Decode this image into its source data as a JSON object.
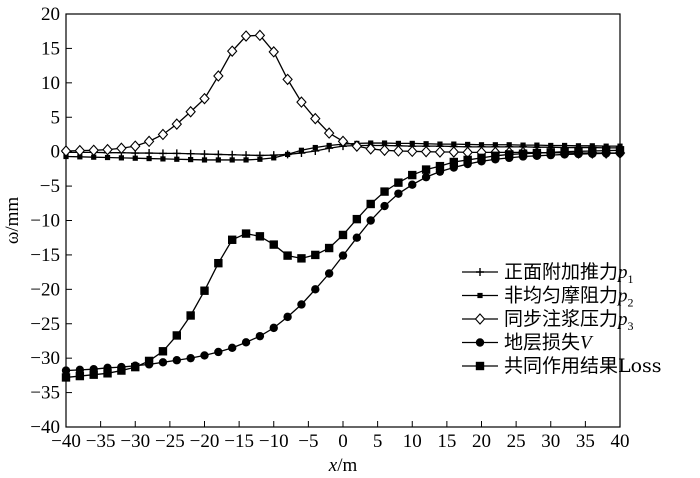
{
  "chart_data": {
    "type": "line",
    "xlabel": "x/m",
    "ylabel": "ω/mm",
    "xlim": [
      -40,
      40
    ],
    "ylim": [
      -40,
      20
    ],
    "xticks": [
      -40,
      -35,
      -30,
      -25,
      -20,
      -15,
      -10,
      -5,
      0,
      5,
      10,
      15,
      20,
      25,
      30,
      35,
      40
    ],
    "yticks": [
      20,
      15,
      10,
      5,
      0,
      -5,
      -10,
      -15,
      -20,
      -25,
      -30,
      -35,
      -40
    ],
    "grid": false,
    "legend_position": "bottom-right",
    "series": [
      {
        "name": "正面附加推力p1",
        "legend_label": "正面附加推力",
        "legend_var": "p",
        "legend_sub": "1",
        "marker": "plus",
        "x": [
          -40,
          -38,
          -36,
          -34,
          -32,
          -30,
          -28,
          -26,
          -24,
          -22,
          -20,
          -18,
          -16,
          -14,
          -12,
          -10,
          -8,
          -6,
          -4,
          -2,
          0,
          2,
          4,
          6,
          8,
          10,
          12,
          14,
          16,
          18,
          20,
          22,
          24,
          26,
          28,
          30,
          32,
          34,
          36,
          38,
          40
        ],
        "values": [
          -0.1,
          -0.1,
          -0.1,
          -0.15,
          -0.15,
          -0.2,
          -0.2,
          -0.25,
          -0.25,
          -0.3,
          -0.35,
          -0.4,
          -0.45,
          -0.5,
          -0.55,
          -0.5,
          -0.4,
          -0.2,
          0.1,
          0.5,
          0.8,
          0.9,
          0.9,
          0.9,
          0.85,
          0.8,
          0.8,
          0.8,
          0.75,
          0.7,
          0.7,
          0.7,
          0.7,
          0.7,
          0.65,
          0.65,
          0.6,
          0.6,
          0.6,
          0.55,
          0.55
        ]
      },
      {
        "name": "非均匀摩阻力p2",
        "legend_label": "非均匀摩阻力",
        "legend_var": "p",
        "legend_sub": "2",
        "marker": "small-square",
        "x": [
          -40,
          -38,
          -36,
          -34,
          -32,
          -30,
          -28,
          -26,
          -24,
          -22,
          -20,
          -18,
          -16,
          -14,
          -12,
          -10,
          -8,
          -6,
          -4,
          -2,
          0,
          2,
          4,
          6,
          8,
          10,
          12,
          14,
          16,
          18,
          20,
          22,
          24,
          26,
          28,
          30,
          32,
          34,
          36,
          38,
          40
        ],
        "values": [
          -0.7,
          -0.75,
          -0.8,
          -0.85,
          -0.9,
          -0.95,
          -1.0,
          -1.05,
          -1.1,
          -1.15,
          -1.2,
          -1.2,
          -1.2,
          -1.2,
          -1.1,
          -0.9,
          -0.4,
          0.2,
          0.6,
          0.9,
          1.1,
          1.2,
          1.25,
          1.25,
          1.2,
          1.2,
          1.15,
          1.1,
          1.1,
          1.05,
          1.0,
          1.0,
          1.0,
          0.95,
          0.95,
          0.9,
          0.9,
          0.85,
          0.85,
          0.8,
          0.8
        ]
      },
      {
        "name": "同步注浆压力p3",
        "legend_label": "同步注浆压力",
        "legend_var": "p",
        "legend_sub": "3",
        "marker": "diamond",
        "x": [
          -40,
          -38,
          -36,
          -34,
          -32,
          -30,
          -28,
          -26,
          -24,
          -22,
          -20,
          -18,
          -16,
          -14,
          -12,
          -10,
          -8,
          -6,
          -4,
          -2,
          0,
          2,
          4,
          6,
          8,
          10,
          12,
          14,
          16,
          18,
          20,
          22,
          24,
          26,
          28,
          30,
          32,
          34,
          36,
          38,
          40
        ],
        "values": [
          0.1,
          0.15,
          0.2,
          0.3,
          0.5,
          0.8,
          1.5,
          2.5,
          4.0,
          5.8,
          7.7,
          11.0,
          14.6,
          16.8,
          16.9,
          14.5,
          10.5,
          7.2,
          4.8,
          2.7,
          1.5,
          0.8,
          0.4,
          0.2,
          0.1,
          0.05,
          0.0,
          -0.05,
          -0.05,
          -0.1,
          -0.1,
          -0.1,
          -0.1,
          -0.1,
          -0.15,
          -0.15,
          -0.15,
          -0.2,
          -0.2,
          -0.2,
          -0.2
        ]
      },
      {
        "name": "地层损失V",
        "legend_label": "地层损失",
        "legend_var": "V",
        "legend_sub": "",
        "marker": "circle",
        "x": [
          -40,
          -38,
          -36,
          -34,
          -32,
          -30,
          -28,
          -26,
          -24,
          -22,
          -20,
          -18,
          -16,
          -14,
          -12,
          -10,
          -8,
          -6,
          -4,
          -2,
          0,
          2,
          4,
          6,
          8,
          10,
          12,
          14,
          16,
          18,
          20,
          22,
          24,
          26,
          28,
          30,
          32,
          34,
          36,
          38,
          40
        ],
        "values": [
          -31.8,
          -31.7,
          -31.6,
          -31.4,
          -31.3,
          -31.1,
          -30.9,
          -30.6,
          -30.3,
          -30.0,
          -29.6,
          -29.1,
          -28.5,
          -27.7,
          -26.8,
          -25.6,
          -24.0,
          -22.2,
          -20.0,
          -17.7,
          -15.1,
          -12.5,
          -10.0,
          -7.9,
          -6.1,
          -4.8,
          -3.7,
          -2.9,
          -2.3,
          -1.8,
          -1.4,
          -1.1,
          -0.9,
          -0.7,
          -0.6,
          -0.5,
          -0.4,
          -0.35,
          -0.3,
          -0.25,
          -0.2
        ]
      },
      {
        "name": "共同作用结果Loss",
        "legend_label": "共同作用结果Loss",
        "legend_var": "",
        "legend_sub": "",
        "marker": "square",
        "x": [
          -40,
          -38,
          -36,
          -34,
          -32,
          -30,
          -28,
          -26,
          -24,
          -22,
          -20,
          -18,
          -16,
          -14,
          -12,
          -10,
          -8,
          -6,
          -4,
          -2,
          0,
          2,
          4,
          6,
          8,
          10,
          12,
          14,
          16,
          18,
          20,
          22,
          24,
          26,
          28,
          30,
          32,
          34,
          36,
          38,
          40
        ],
        "values": [
          -32.8,
          -32.6,
          -32.4,
          -32.2,
          -31.8,
          -31.3,
          -30.4,
          -29.0,
          -26.7,
          -23.8,
          -20.2,
          -16.2,
          -12.8,
          -11.9,
          -12.3,
          -13.5,
          -15.1,
          -15.5,
          -15.0,
          -14.0,
          -12.1,
          -9.8,
          -7.6,
          -5.8,
          -4.5,
          -3.4,
          -2.6,
          -2.1,
          -1.5,
          -1.2,
          -0.9,
          -0.6,
          -0.4,
          -0.3,
          -0.2,
          -0.1,
          0.0,
          0.05,
          0.1,
          0.15,
          0.2
        ]
      }
    ]
  }
}
